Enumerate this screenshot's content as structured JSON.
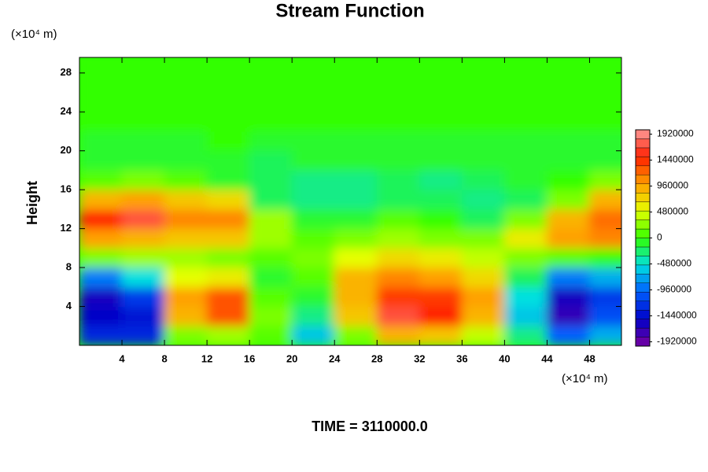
{
  "chart_data": {
    "type": "contour",
    "title": "Stream Function",
    "x_unit": "(×10⁴ m)",
    "y_unit": "(×10⁴ m)",
    "ylabel": "Height",
    "footer": "TIME = 3110000.0",
    "x": [
      2,
      6,
      10,
      14,
      18,
      22,
      26,
      30,
      34,
      38,
      42,
      46,
      50
    ],
    "y": [
      1,
      3,
      5,
      7,
      9,
      11,
      13,
      15,
      17,
      19,
      21,
      23,
      25,
      27,
      29
    ],
    "z": [
      [
        -1300000,
        -1300000,
        200000,
        300000,
        100000,
        -600000,
        200000,
        900000,
        800000,
        400000,
        -300000,
        -1000000,
        -700000
      ],
      [
        -1500000,
        -1400000,
        900000,
        1300000,
        200000,
        -300000,
        800000,
        1700000,
        1500000,
        900000,
        -600000,
        -1700000,
        -1100000
      ],
      [
        -1600000,
        -1200000,
        1000000,
        1300000,
        100000,
        -100000,
        900000,
        1400000,
        1400000,
        1000000,
        -500000,
        -1600000,
        -1200000
      ],
      [
        -900000,
        -500000,
        500000,
        600000,
        -100000,
        100000,
        900000,
        1100000,
        1000000,
        700000,
        -200000,
        -900000,
        -700000
      ],
      [
        200000,
        300000,
        300000,
        200000,
        100000,
        200000,
        500000,
        700000,
        600000,
        400000,
        200000,
        100000,
        0
      ],
      [
        1000000,
        900000,
        800000,
        800000,
        300000,
        100000,
        200000,
        300000,
        200000,
        200000,
        600000,
        1000000,
        1100000
      ],
      [
        1500000,
        1700000,
        1100000,
        1100000,
        300000,
        -100000,
        -100000,
        100000,
        0,
        -200000,
        200000,
        900000,
        1200000
      ],
      [
        900000,
        1000000,
        800000,
        700000,
        -200000,
        -300000,
        -300000,
        -200000,
        -200000,
        -300000,
        -200000,
        200000,
        900000
      ],
      [
        100000,
        200000,
        100000,
        -100000,
        -200000,
        -300000,
        -300000,
        -200000,
        -300000,
        -200000,
        -100000,
        0,
        200000
      ],
      [
        -100000,
        -100000,
        -100000,
        -100000,
        -200000,
        -100000,
        -100000,
        -100000,
        -100000,
        -100000,
        -100000,
        -100000,
        -100000
      ],
      [
        -100000,
        -100000,
        -100000,
        0,
        -100000,
        -100000,
        -100000,
        -100000,
        -100000,
        -100000,
        -100000,
        -100000,
        -100000
      ],
      [
        0,
        0,
        0,
        0,
        0,
        0,
        0,
        0,
        0,
        0,
        0,
        0,
        0
      ],
      [
        0,
        0,
        0,
        0,
        0,
        0,
        0,
        0,
        0,
        0,
        0,
        0,
        0
      ],
      [
        0,
        0,
        0,
        0,
        0,
        0,
        0,
        0,
        0,
        0,
        0,
        0,
        0
      ],
      [
        0,
        0,
        0,
        0,
        0,
        0,
        0,
        0,
        0,
        0,
        0,
        0,
        0
      ]
    ],
    "xlim": [
      0,
      51
    ],
    "ylim": [
      0,
      29.6
    ],
    "xticks": [
      4,
      8,
      12,
      16,
      20,
      24,
      28,
      32,
      36,
      40,
      44,
      48
    ],
    "yticks": [
      4,
      8,
      12,
      16,
      20,
      24,
      28
    ],
    "zlim": [
      -2000000,
      2000000
    ],
    "colorbar_ticks": [
      1920000,
      1440000,
      960000,
      480000,
      0,
      -480000,
      -960000,
      -1440000,
      -1920000
    ],
    "colorscale": [
      "#7a00a0",
      "#0000c8",
      "#0060ff",
      "#00e0e0",
      "#33ff00",
      "#e6ff00",
      "#ffa000",
      "#ff2000",
      "#ff9a9a"
    ]
  }
}
